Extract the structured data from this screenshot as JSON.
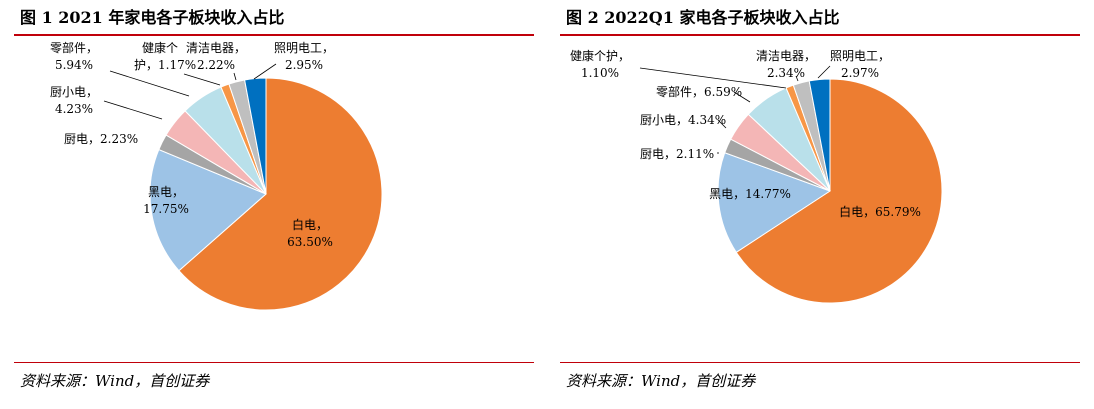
{
  "chart_data": [
    {
      "type": "pie",
      "title": "图 1 2021 年家电各子板块收入占比",
      "unit": "%",
      "slices": [
        {
          "name": "白电",
          "value": 63.5,
          "label": "63.50%",
          "color": "#ed7d31"
        },
        {
          "name": "黑电",
          "value": 17.75,
          "label": "17.75%",
          "color": "#9dc3e6"
        },
        {
          "name": "厨电",
          "value": 2.23,
          "label": "2.23%",
          "color": "#a5a5a5"
        },
        {
          "name": "厨小电",
          "value": 4.23,
          "label": "4.23%",
          "color": "#f4b6b6"
        },
        {
          "name": "零部件",
          "value": 5.94,
          "label": "5.94%",
          "color": "#b9e0ea"
        },
        {
          "name": "健康个护",
          "value": 1.17,
          "label": "1.17%",
          "color": "#f79646"
        },
        {
          "name": "清洁电器",
          "value": 2.22,
          "label": "2.22%",
          "color": "#bfbfbf"
        },
        {
          "name": "照明电工",
          "value": 2.95,
          "label": "2.95%",
          "color": "#0070c0"
        }
      ],
      "source": "资料来源：Wind，首创证券"
    },
    {
      "type": "pie",
      "title": "图 2 2022Q1 家电各子板块收入占比",
      "unit": "%",
      "slices": [
        {
          "name": "白电",
          "value": 65.79,
          "label": "65.79%",
          "color": "#ed7d31"
        },
        {
          "name": "黑电",
          "value": 14.77,
          "label": "14.77%",
          "color": "#9dc3e6"
        },
        {
          "name": "厨电",
          "value": 2.11,
          "label": "2.11%",
          "color": "#a5a5a5"
        },
        {
          "name": "厨小电",
          "value": 4.34,
          "label": "4.34%",
          "color": "#f4b6b6"
        },
        {
          "name": "零部件",
          "value": 6.59,
          "label": "6.59%",
          "color": "#b9e0ea"
        },
        {
          "name": "健康个护",
          "value": 1.1,
          "label": "1.10%",
          "color": "#f79646"
        },
        {
          "name": "清洁电器",
          "value": 2.34,
          "label": "2.34%",
          "color": "#bfbfbf"
        },
        {
          "name": "照明电工",
          "value": 2.97,
          "label": "2.97%",
          "color": "#0070c0"
        }
      ],
      "source": "资料来源：Wind，首创证券"
    }
  ]
}
